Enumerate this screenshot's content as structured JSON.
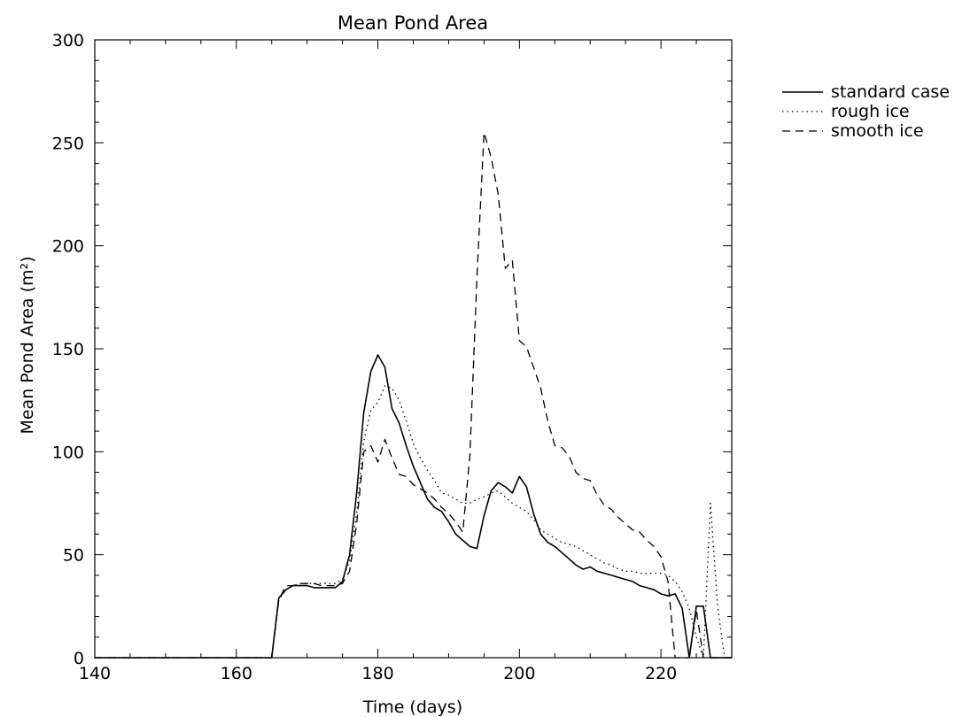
{
  "chart_data": {
    "type": "line",
    "title": "Mean Pond Area",
    "xlabel": "Time (days)",
    "ylabel": "Mean Pond Area (m²)",
    "xlim": [
      140,
      230
    ],
    "ylim": [
      0,
      300
    ],
    "x_ticks": [
      140,
      160,
      180,
      200,
      220
    ],
    "y_ticks": [
      0,
      50,
      100,
      150,
      200,
      250,
      300
    ],
    "grid": false,
    "legend_position": "top-right outside",
    "series": [
      {
        "name": "standard case",
        "dash": "solid",
        "x": [
          140,
          165,
          166,
          167,
          168,
          169,
          170,
          171,
          172,
          173,
          174,
          175,
          176,
          177,
          178,
          179,
          180,
          181,
          182,
          183,
          184,
          185,
          186,
          187,
          188,
          189,
          190,
          191,
          192,
          193,
          194,
          195,
          196,
          197,
          198,
          199,
          200,
          201,
          202,
          203,
          204,
          205,
          206,
          207,
          208,
          209,
          210,
          211,
          212,
          213,
          214,
          215,
          216,
          217,
          218,
          219,
          220,
          221,
          222,
          223,
          224,
          225,
          226,
          227,
          230
        ],
        "values": [
          0,
          0,
          29,
          33,
          35,
          35,
          35,
          34,
          34,
          34,
          34,
          37,
          50,
          80,
          119,
          139,
          147,
          141,
          121,
          114,
          103,
          93,
          85,
          77,
          73,
          71,
          66,
          60,
          57,
          54,
          53,
          69,
          81,
          85,
          83,
          80,
          88,
          83,
          70,
          60,
          56,
          54,
          51,
          48,
          45,
          43,
          44,
          42,
          41,
          40,
          39,
          38,
          37,
          35,
          34,
          33,
          31,
          30,
          31,
          24,
          0,
          25,
          25,
          0,
          0
        ]
      },
      {
        "name": "rough ice",
        "dash": "dotted",
        "x": [
          140,
          165,
          166,
          167,
          168,
          169,
          170,
          171,
          172,
          173,
          174,
          175,
          176,
          177,
          178,
          179,
          180,
          181,
          182,
          183,
          184,
          185,
          186,
          187,
          188,
          189,
          190,
          191,
          192,
          193,
          194,
          195,
          196,
          197,
          198,
          199,
          200,
          201,
          202,
          203,
          204,
          205,
          206,
          207,
          208,
          209,
          210,
          211,
          212,
          213,
          214,
          215,
          216,
          217,
          218,
          219,
          220,
          221,
          222,
          223,
          224,
          225,
          226,
          227,
          228,
          229,
          230
        ],
        "values": [
          0,
          0,
          28,
          33,
          35,
          36,
          36,
          36,
          36,
          36,
          36,
          38,
          47,
          70,
          105,
          120,
          124,
          132,
          131,
          125,
          115,
          104,
          97,
          91,
          86,
          80,
          79,
          77,
          75,
          75,
          77,
          78,
          80,
          81,
          78,
          75,
          73,
          71,
          67,
          62,
          60,
          58,
          56,
          55,
          54,
          52,
          50,
          48,
          46,
          45,
          43,
          42,
          42,
          41,
          41,
          41,
          41,
          40,
          37,
          32,
          24,
          10,
          0,
          75,
          25,
          0,
          0
        ]
      },
      {
        "name": "smooth ice",
        "dash": "dashed",
        "x": [
          140,
          165,
          166,
          167,
          168,
          169,
          170,
          171,
          172,
          173,
          174,
          175,
          176,
          177,
          178,
          179,
          180,
          181,
          182,
          183,
          184,
          185,
          186,
          187,
          188,
          189,
          190,
          191,
          192,
          193,
          194,
          195,
          196,
          197,
          198,
          199,
          200,
          201,
          202,
          203,
          204,
          205,
          206,
          207,
          208,
          209,
          210,
          211,
          212,
          213,
          214,
          215,
          216,
          217,
          218,
          219,
          220,
          221,
          222,
          223,
          224,
          225,
          226,
          227,
          230
        ],
        "values": [
          0,
          0,
          28,
          35,
          35,
          36,
          36,
          36,
          35,
          35,
          35,
          36,
          42,
          65,
          100,
          103,
          95,
          106,
          97,
          89,
          88,
          84,
          82,
          80,
          77,
          73,
          70,
          66,
          61,
          98,
          185,
          255,
          243,
          225,
          189,
          193,
          154,
          151,
          141,
          131,
          115,
          103,
          102,
          98,
          90,
          87,
          86,
          79,
          74,
          72,
          68,
          65,
          62,
          61,
          57,
          54,
          49,
          37,
          0,
          0,
          0,
          23,
          0,
          0,
          0
        ]
      }
    ]
  }
}
